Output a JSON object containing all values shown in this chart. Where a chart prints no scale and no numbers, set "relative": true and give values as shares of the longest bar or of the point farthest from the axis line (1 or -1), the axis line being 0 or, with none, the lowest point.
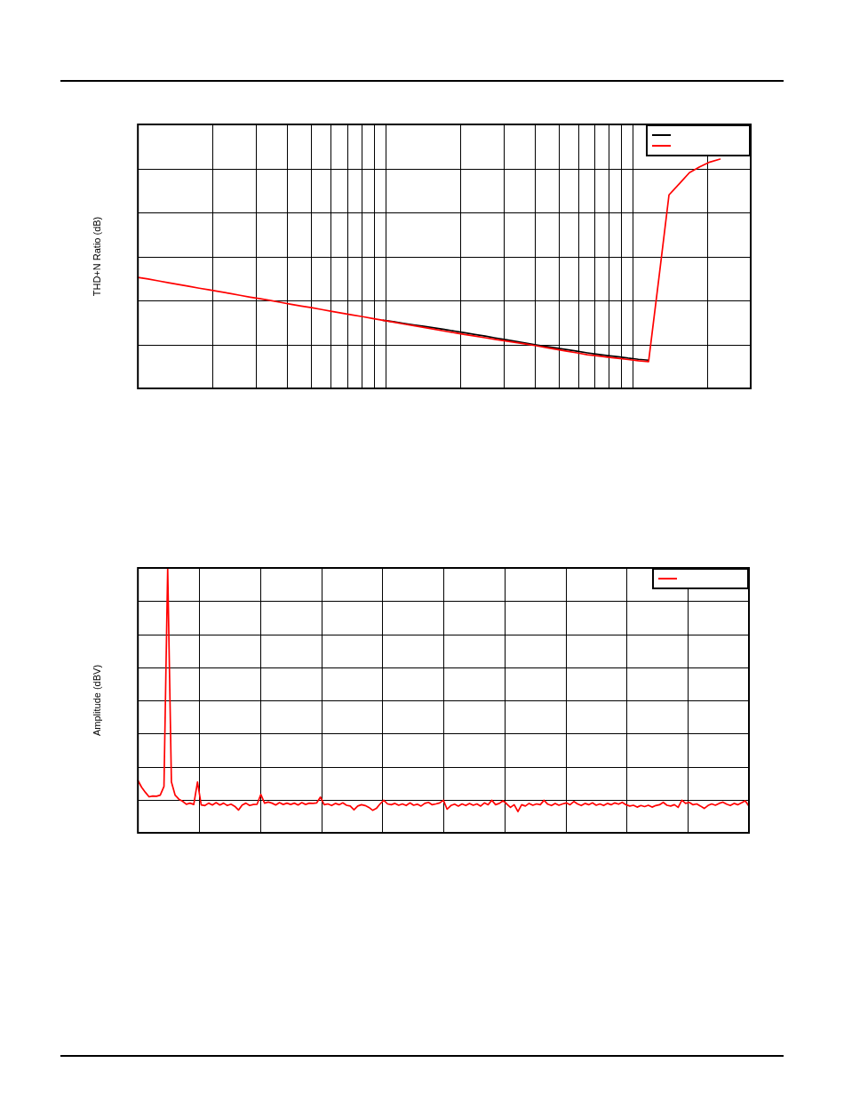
{
  "chart_data": [
    {
      "type": "line",
      "ylabel": "THD+N Ratio (dB)",
      "relative": true,
      "grid": true,
      "categories": [
        null,
        null,
        null,
        null,
        null,
        null,
        null,
        null,
        null,
        null,
        null,
        null,
        null,
        null,
        null,
        null,
        null,
        null,
        null,
        null,
        null,
        null,
        null,
        null,
        null,
        null,
        null,
        null,
        null,
        null,
        null,
        null,
        null,
        null,
        null,
        null,
        null,
        null,
        null,
        null,
        null,
        null,
        null,
        null,
        null,
        null,
        null,
        null,
        null,
        null,
        null,
        null,
        null,
        null,
        null,
        null,
        null,
        null,
        null,
        null,
        null
      ],
      "series": [
        {
          "color": "#000000",
          "values": [
            null,
            null,
            null,
            null,
            null,
            null,
            null,
            null,
            null,
            null,
            null,
            null,
            null,
            null,
            null,
            null,
            null,
            null,
            null,
            null,
            null,
            null,
            null,
            null,
            0.297,
            0.291,
            0.284,
            0.277,
            0.271,
            0.264,
            0.257,
            0.25,
            0.243,
            0.235,
            0.228,
            0.22,
            0.213,
            0.205,
            0.197,
            0.19,
            0.183,
            0.176,
            0.169,
            0.162,
            0.155,
            0.149,
            0.143,
            0.138,
            0.132,
            0.127,
            0.123,
            null,
            null,
            null,
            null,
            null,
            null,
            null,
            null,
            null,
            null
          ]
        },
        {
          "color": "#ff0000",
          "values": [
            0.484,
            0.477,
            0.469,
            0.461,
            0.453,
            0.445,
            0.437,
            0.43,
            0.422,
            0.414,
            0.406,
            0.398,
            0.391,
            0.383,
            0.375,
            0.367,
            0.359,
            0.352,
            0.344,
            0.336,
            0.328,
            0.32,
            0.313,
            0.305,
            0.297,
            0.289,
            0.281,
            0.274,
            0.266,
            0.258,
            0.25,
            0.243,
            0.235,
            0.228,
            0.221,
            0.214,
            0.207,
            0.2,
            0.193,
            0.186,
            0.178,
            0.17,
            0.162,
            0.155,
            0.147,
            0.142,
            0.136,
            0.131,
            0.126,
            0.121,
            0.117,
            0.477,
            0.844,
            0.892,
            0.941,
            0.966,
            0.987,
            1,
            null,
            null,
            null
          ]
        }
      ]
    },
    {
      "type": "line",
      "ylabel": "Amplitude (dBV)",
      "relative": true,
      "grid": true,
      "categories": [
        null,
        null,
        null,
        null,
        null,
        null,
        null,
        null,
        null,
        null,
        null,
        null,
        null,
        null,
        null,
        null,
        null,
        null,
        null,
        null,
        null,
        null,
        null,
        null,
        null,
        null,
        null,
        null,
        null,
        null,
        null,
        null,
        null,
        null,
        null,
        null,
        null,
        null,
        null,
        null,
        null,
        null,
        null,
        null,
        null,
        null,
        null,
        null,
        null,
        null,
        null,
        null,
        null,
        null,
        null,
        null,
        null,
        null,
        null,
        null,
        null,
        null,
        null,
        null,
        null,
        null,
        null,
        null,
        null,
        null,
        null,
        null,
        null,
        null,
        null,
        null,
        null,
        null,
        null,
        null,
        null,
        null,
        null,
        null,
        null,
        null,
        null,
        null,
        null,
        null,
        null,
        null,
        null,
        null,
        null,
        null,
        null,
        null,
        null,
        null,
        null,
        null,
        null,
        null,
        null,
        null,
        null,
        null,
        null,
        null,
        null,
        null,
        null,
        null,
        null,
        null,
        null,
        null,
        null,
        null,
        null,
        null,
        null,
        null,
        null,
        null,
        null,
        null,
        null,
        null,
        null,
        null,
        null,
        null,
        null,
        null,
        null,
        null,
        null,
        null,
        null,
        null,
        null,
        null,
        null,
        null,
        null,
        null,
        null,
        null,
        null,
        null,
        null,
        null,
        null,
        null,
        null,
        null,
        null,
        null,
        null,
        null,
        null,
        null,
        null
      ],
      "series": [
        {
          "color": "#ff0000",
          "values": [
            0.198,
            0.172,
            0.153,
            0.136,
            0.139,
            0.138,
            0.142,
            0.175,
            1,
            0.192,
            0.142,
            0.127,
            0.119,
            0.108,
            0.112,
            0.107,
            0.192,
            0.105,
            0.103,
            0.112,
            0.105,
            0.114,
            0.105,
            0.112,
            0.103,
            0.108,
            0.1,
            0.086,
            0.105,
            0.112,
            0.103,
            0.107,
            0.108,
            0.145,
            0.112,
            0.116,
            0.112,
            0.105,
            0.114,
            0.107,
            0.112,
            0.107,
            0.112,
            0.105,
            0.114,
            0.107,
            0.112,
            0.111,
            0.113,
            0.135,
            0.106,
            0.109,
            0.103,
            0.111,
            0.106,
            0.113,
            0.104,
            0.101,
            0.087,
            0.101,
            0.106,
            0.103,
            0.096,
            0.085,
            0.092,
            0.109,
            0.123,
            0.109,
            0.106,
            0.111,
            0.104,
            0.109,
            0.103,
            0.113,
            0.104,
            0.108,
            0.101,
            0.111,
            0.115,
            0.106,
            0.109,
            0.113,
            0.123,
            0.089,
            0.103,
            0.108,
            0.101,
            0.109,
            0.103,
            0.111,
            0.104,
            0.109,
            0.101,
            0.113,
            0.106,
            0.123,
            0.106,
            0.111,
            0.121,
            0.109,
            0.096,
            0.106,
            0.08,
            0.106,
            0.101,
            0.111,
            0.104,
            0.109,
            0.106,
            0.123,
            0.108,
            0.103,
            0.111,
            0.104,
            0.109,
            0.113,
            0.106,
            0.118,
            0.109,
            0.103,
            0.111,
            0.106,
            0.113,
            0.104,
            0.109,
            0.103,
            0.111,
            0.106,
            0.113,
            0.108,
            0.115,
            0.106,
            0.101,
            0.104,
            0.097,
            0.103,
            0.099,
            0.104,
            0.097,
            0.103,
            0.106,
            0.115,
            0.104,
            0.101,
            0.106,
            0.096,
            0.123,
            0.111,
            0.115,
            0.106,
            0.109,
            0.101,
            0.092,
            0.103,
            0.109,
            0.104,
            0.111,
            0.116,
            0.108,
            0.103,
            0.111,
            0.106,
            0.113,
            0.121,
            0.101
          ]
        }
      ]
    }
  ]
}
